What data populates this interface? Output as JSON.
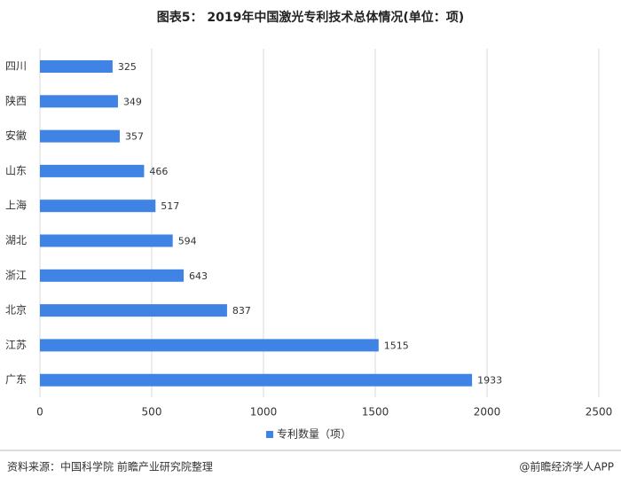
{
  "chart_data": {
    "type": "bar",
    "orientation": "horizontal",
    "title": "图表5： 2019年中国激光专利技术总体情况(单位：项)",
    "categories": [
      "四川",
      "陕西",
      "安徽",
      "山东",
      "上海",
      "湖北",
      "浙江",
      "北京",
      "江苏",
      "广东"
    ],
    "series": [
      {
        "name": "专利数量（项）",
        "color": "#3f83e4",
        "values": [
          325,
          349,
          357,
          466,
          517,
          594,
          643,
          837,
          1515,
          1933
        ]
      }
    ],
    "xlim": [
      0,
      2500
    ],
    "xticks": [
      0,
      500,
      1000,
      1500,
      2000,
      2500
    ],
    "grid": true,
    "legend": "bottom"
  },
  "footer": {
    "source": "资料来源：中国科学院 前瞻产业研究院整理",
    "credit": "@前瞻经济学人APP"
  }
}
